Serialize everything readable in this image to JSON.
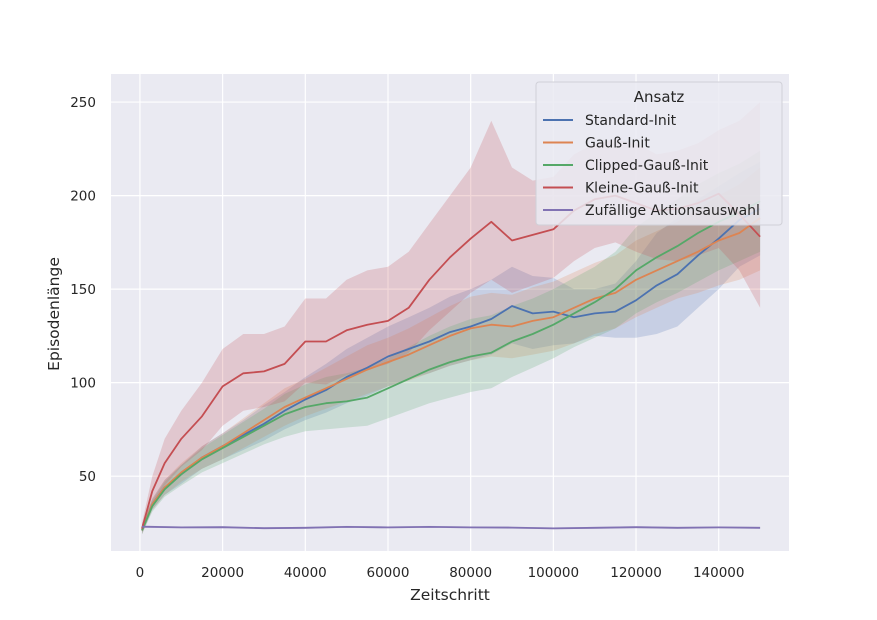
{
  "chart_data": {
    "type": "line",
    "title": "",
    "xlabel": "Zeitschritt",
    "ylabel": "Episodenlänge",
    "xlim": [
      -7000,
      157000
    ],
    "ylim": [
      10,
      265
    ],
    "xticks": [
      0,
      20000,
      40000,
      60000,
      80000,
      100000,
      120000,
      140000
    ],
    "yticks": [
      50,
      100,
      150,
      200,
      250
    ],
    "grid": true,
    "legend": {
      "title": "Ansatz",
      "position": "top-right"
    },
    "series": [
      {
        "name": "Standard-Init",
        "color": "#4c72b0",
        "x": [
          500,
          3000,
          6000,
          10000,
          15000,
          20000,
          25000,
          30000,
          35000,
          40000,
          45000,
          50000,
          55000,
          60000,
          65000,
          70000,
          75000,
          80000,
          85000,
          90000,
          95000,
          100000,
          105000,
          110000,
          115000,
          120000,
          125000,
          130000,
          135000,
          140000,
          145000,
          150000
        ],
        "y": [
          21,
          35,
          44,
          51,
          60,
          66,
          72,
          78,
          85,
          91,
          96,
          103,
          108,
          114,
          118,
          122,
          127,
          130,
          134,
          141,
          137,
          138,
          135,
          137,
          138,
          144,
          152,
          158,
          168,
          177,
          187,
          193
        ],
        "lower": [
          19,
          32,
          40,
          46,
          54,
          59,
          64,
          69,
          75,
          80,
          84,
          89,
          93,
          98,
          102,
          105,
          109,
          112,
          115,
          121,
          118,
          120,
          121,
          125,
          124,
          124,
          126,
          130,
          140,
          150,
          162,
          168
        ],
        "upper": [
          24,
          38,
          48,
          56,
          66,
          73,
          80,
          88,
          95,
          103,
          110,
          118,
          124,
          130,
          135,
          140,
          146,
          150,
          155,
          162,
          157,
          156,
          150,
          150,
          153,
          165,
          180,
          188,
          198,
          205,
          212,
          218
        ]
      },
      {
        "name": "Gauß-Init",
        "color": "#dd8452",
        "x": [
          500,
          3000,
          6000,
          10000,
          15000,
          20000,
          25000,
          30000,
          35000,
          40000,
          45000,
          50000,
          55000,
          60000,
          65000,
          70000,
          75000,
          80000,
          85000,
          90000,
          95000,
          100000,
          105000,
          110000,
          115000,
          120000,
          125000,
          130000,
          135000,
          140000,
          145000,
          150000
        ],
        "y": [
          21,
          35,
          44,
          52,
          60,
          66,
          73,
          80,
          87,
          92,
          97,
          102,
          107,
          111,
          115,
          120,
          125,
          129,
          131,
          130,
          133,
          135,
          140,
          145,
          148,
          155,
          160,
          165,
          170,
          176,
          180,
          188
        ],
        "lower": [
          19,
          32,
          40,
          47,
          54,
          59,
          65,
          71,
          77,
          82,
          86,
          90,
          94,
          98,
          101,
          105,
          109,
          112,
          114,
          113,
          115,
          117,
          121,
          126,
          129,
          135,
          140,
          145,
          148,
          152,
          155,
          160
        ],
        "upper": [
          24,
          38,
          48,
          57,
          66,
          73,
          81,
          89,
          97,
          102,
          108,
          114,
          120,
          124,
          129,
          135,
          141,
          146,
          148,
          147,
          151,
          154,
          159,
          164,
          168,
          176,
          181,
          186,
          193,
          200,
          206,
          215
        ]
      },
      {
        "name": "Clipped-Gauß-Init",
        "color": "#55a868",
        "x": [
          500,
          3000,
          6000,
          10000,
          15000,
          20000,
          25000,
          30000,
          35000,
          40000,
          45000,
          50000,
          55000,
          60000,
          65000,
          70000,
          75000,
          80000,
          85000,
          90000,
          95000,
          100000,
          105000,
          110000,
          115000,
          120000,
          125000,
          130000,
          135000,
          140000,
          145000,
          150000
        ],
        "y": [
          21,
          34,
          43,
          51,
          59,
          65,
          71,
          77,
          83,
          87,
          89,
          90,
          92,
          97,
          102,
          107,
          111,
          114,
          116,
          122,
          126,
          131,
          137,
          143,
          150,
          160,
          167,
          173,
          180,
          186,
          191,
          197
        ],
        "lower": [
          19,
          31,
          39,
          45,
          52,
          57,
          62,
          67,
          71,
          74,
          75,
          76,
          77,
          81,
          85,
          89,
          92,
          95,
          97,
          103,
          108,
          113,
          119,
          124,
          129,
          137,
          143,
          148,
          154,
          160,
          165,
          170
        ],
        "upper": [
          24,
          37,
          47,
          56,
          65,
          72,
          79,
          86,
          94,
          99,
          103,
          105,
          108,
          113,
          119,
          125,
          130,
          134,
          136,
          141,
          145,
          150,
          156,
          162,
          170,
          183,
          191,
          198,
          206,
          212,
          217,
          224
        ]
      },
      {
        "name": "Kleine-Gauß-Init",
        "color": "#c44e52",
        "x": [
          500,
          3000,
          6000,
          10000,
          15000,
          20000,
          25000,
          30000,
          35000,
          40000,
          45000,
          50000,
          55000,
          60000,
          65000,
          70000,
          75000,
          80000,
          85000,
          90000,
          95000,
          100000,
          105000,
          110000,
          115000,
          120000,
          125000,
          130000,
          135000,
          140000,
          145000,
          150000
        ],
        "y": [
          22,
          42,
          57,
          70,
          82,
          98,
          105,
          106,
          110,
          122,
          122,
          128,
          131,
          133,
          140,
          155,
          167,
          177,
          186,
          176,
          179,
          182,
          192,
          198,
          200,
          196,
          192,
          193,
          196,
          201,
          190,
          178
        ],
        "lower": [
          20,
          34,
          45,
          55,
          64,
          77,
          85,
          87,
          90,
          100,
          99,
          104,
          107,
          110,
          116,
          128,
          138,
          148,
          155,
          148,
          152,
          156,
          165,
          172,
          175,
          170,
          166,
          165,
          168,
          172,
          160,
          140
        ],
        "upper": [
          25,
          50,
          70,
          85,
          100,
          118,
          126,
          126,
          130,
          145,
          145,
          155,
          160,
          162,
          170,
          185,
          200,
          215,
          240,
          215,
          208,
          210,
          222,
          228,
          230,
          228,
          222,
          224,
          228,
          235,
          240,
          250
        ]
      },
      {
        "name": "Zufällige Aktionsauswahl",
        "color": "#8172b3",
        "x": [
          500,
          10000,
          20000,
          30000,
          40000,
          50000,
          60000,
          70000,
          80000,
          90000,
          100000,
          110000,
          120000,
          130000,
          140000,
          150000
        ],
        "y": [
          23,
          22.6,
          22.7,
          22.2,
          22.4,
          22.9,
          22.6,
          22.9,
          22.6,
          22.5,
          22.1,
          22.4,
          22.7,
          22.4,
          22.6,
          22.4
        ],
        "lower": [
          22.4,
          22.1,
          22.2,
          21.7,
          21.9,
          22.4,
          22.1,
          22.4,
          22.1,
          22.0,
          21.6,
          21.9,
          22.2,
          21.9,
          22.1,
          21.9
        ],
        "upper": [
          23.6,
          23.1,
          23.2,
          22.7,
          22.9,
          23.4,
          23.1,
          23.4,
          23.1,
          23.0,
          22.6,
          22.9,
          23.2,
          22.9,
          23.1,
          22.9
        ]
      }
    ]
  }
}
